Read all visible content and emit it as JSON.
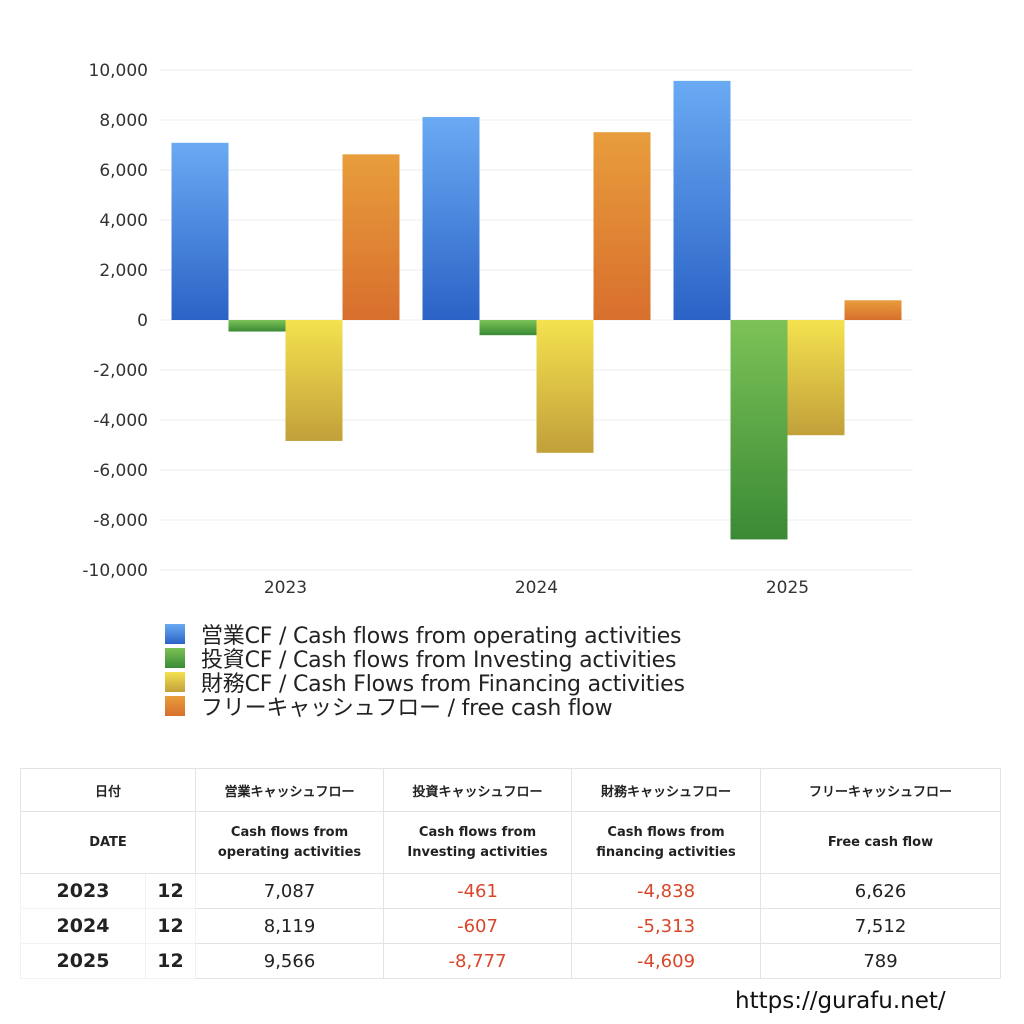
{
  "chart_data": {
    "type": "bar",
    "categories": [
      "2023",
      "2024",
      "2025"
    ],
    "series": [
      {
        "name": "営業CF / Cash flows from operating activities",
        "values": [
          7087,
          8119,
          9566
        ],
        "color_top": "#6aaaf3",
        "color_bottom": "#2b63c6"
      },
      {
        "name": "投資CF / Cash flows from Investing activities",
        "values": [
          -461,
          -607,
          -8777
        ],
        "color_top": "#7cc257",
        "color_bottom": "#3a8a35"
      },
      {
        "name": "財務CF / Cash Flows from Financing activities",
        "values": [
          -4838,
          -5313,
          -4609
        ],
        "color_top": "#f4e24f",
        "color_bottom": "#c2a03a"
      },
      {
        "name": "フリーキャッシュフロー / free cash flow",
        "values": [
          6626,
          7512,
          789
        ],
        "color_top": "#e89d3c",
        "color_bottom": "#d86f2d"
      }
    ],
    "ylim": [
      -10000,
      10000
    ],
    "yticks": [
      "10,000",
      "8,000",
      "6,000",
      "4,000",
      "2,000",
      "0",
      "-2,000",
      "-4,000",
      "-6,000",
      "-8,000",
      "-10,000"
    ],
    "ytick_values": [
      10000,
      8000,
      6000,
      4000,
      2000,
      0,
      -2000,
      -4000,
      -6000,
      -8000,
      -10000
    ],
    "grid": true,
    "legend_position": "bottom"
  },
  "table": {
    "header_jp": [
      "日付",
      "営業キャッシュフロー",
      "投資キャッシュフロー",
      "財務キャッシュフロー",
      "フリーキャッシュフロー"
    ],
    "header_en": {
      "date": "DATE",
      "operating": [
        "Cash flows from",
        "operating activities"
      ],
      "investing": [
        "Cash flows from",
        "Investing activities"
      ],
      "financing": [
        "Cash flows from",
        "financing activities"
      ],
      "free": "Free cash flow"
    },
    "rows": [
      {
        "year": "2023",
        "month": "12",
        "operating": "7,087",
        "investing": "-461",
        "financing": "-4,838",
        "free": "6,626"
      },
      {
        "year": "2024",
        "month": "12",
        "operating": "8,119",
        "investing": "-607",
        "financing": "-5,313",
        "free": "7,512"
      },
      {
        "year": "2025",
        "month": "12",
        "operating": "9,566",
        "investing": "-8,777",
        "financing": "-4,609",
        "free": "789"
      }
    ]
  },
  "footer": {
    "url": "https://gurafu.net/"
  }
}
